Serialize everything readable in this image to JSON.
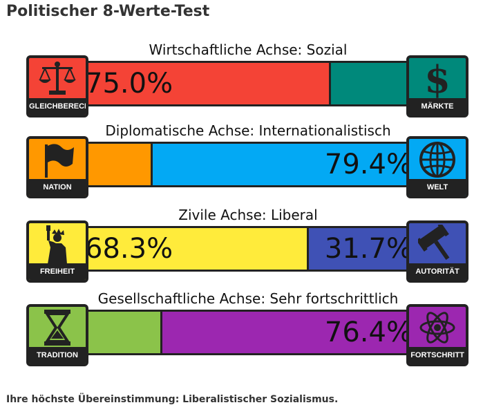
{
  "page": {
    "title": "Politischer 8-Werte-Test",
    "result_text": "Ihre höchste Übereinstimmung: Liberalistischer Sozialismus."
  },
  "axes": [
    {
      "label": "Wirtschaftliche Achse: Sozial",
      "left": {
        "caption": "GLEICHBERECHTIGUNG",
        "icon": "scales-icon",
        "color": "#f44336",
        "percent": 75.0,
        "percent_text": "75.0%"
      },
      "right": {
        "caption": "MÄRKTE",
        "icon": "dollar-icon",
        "color": "#00897b",
        "percent": 25.0,
        "percent_text": ""
      }
    },
    {
      "label": "Diplomatische Achse: Internationalistisch",
      "left": {
        "caption": "NATION",
        "icon": "flag-icon",
        "color": "#ff9800",
        "percent": 20.6,
        "percent_text": ""
      },
      "right": {
        "caption": "WELT",
        "icon": "globe-icon",
        "color": "#03a9f4",
        "percent": 79.4,
        "percent_text": "79.4%"
      }
    },
    {
      "label": "Zivile Achse: Liberal",
      "left": {
        "caption": "FREIHEIT",
        "icon": "statue-of-liberty-icon",
        "color": "#ffeb3b",
        "percent": 68.3,
        "percent_text": "68.3%"
      },
      "right": {
        "caption": "AUTORITÄT",
        "icon": "gavel-icon",
        "color": "#3f51b5",
        "percent": 31.7,
        "percent_text": "31.7%"
      }
    },
    {
      "label": "Gesellschaftliche Achse: Sehr fortschrittlich",
      "left": {
        "caption": "TRADITION",
        "icon": "hourglass-icon",
        "color": "#8bc34a",
        "percent": 23.6,
        "percent_text": ""
      },
      "right": {
        "caption": "FORTSCHRITT",
        "icon": "atom-icon",
        "color": "#9c27b0",
        "percent": 76.4,
        "percent_text": "76.4%"
      }
    }
  ]
}
